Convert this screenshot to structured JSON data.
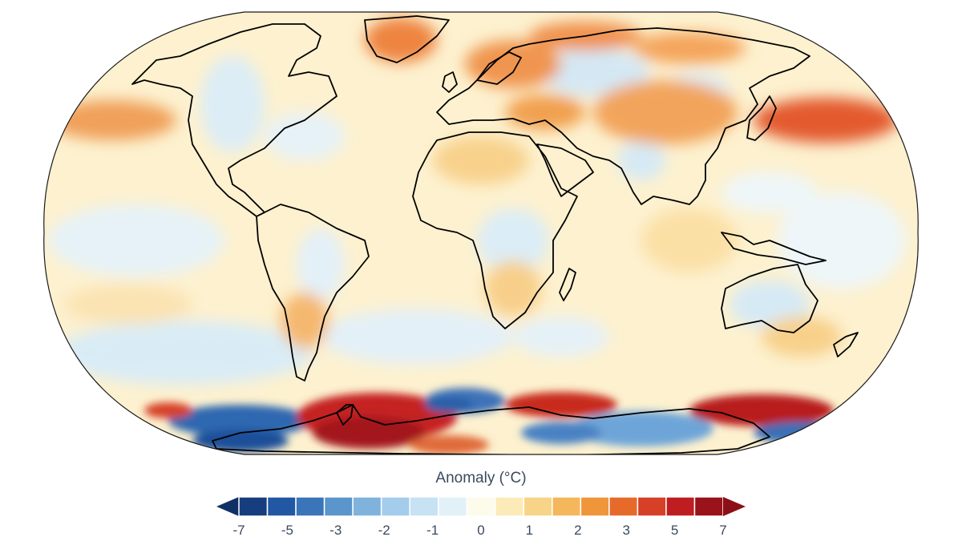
{
  "legend": {
    "title": "Anomaly (°C)",
    "colors": [
      "#163e7e",
      "#2257a4",
      "#3a74b9",
      "#5a95cc",
      "#7fb3dd",
      "#a3cdea",
      "#c6e2f3",
      "#e2f0f8",
      "#fdfbea",
      "#fcebb8",
      "#f8d489",
      "#f5b75c",
      "#f0963a",
      "#e66b2a",
      "#d64027",
      "#bf1e21",
      "#9a121a"
    ],
    "end_colors": {
      "low": "#0f2f66",
      "high": "#8b0f17"
    },
    "ticks": [
      {
        "label": "-7",
        "slot": 0
      },
      {
        "label": "-5",
        "slot": 2
      },
      {
        "label": "-3",
        "slot": 4
      },
      {
        "label": "-2",
        "slot": 6
      },
      {
        "label": "-1",
        "slot": 8
      },
      {
        "label": "0",
        "slot": 10
      },
      {
        "label": "1",
        "slot": 12
      },
      {
        "label": "2",
        "slot": 14
      },
      {
        "label": "3",
        "slot": 16
      },
      {
        "label": "5",
        "slot": 18
      },
      {
        "label": "7",
        "slot": 20
      }
    ]
  },
  "map": {
    "projection": "equal-earth",
    "variable": "surface air temperature anomaly",
    "background_color": "#fdf1cf",
    "coastline_color": "#000000"
  }
}
